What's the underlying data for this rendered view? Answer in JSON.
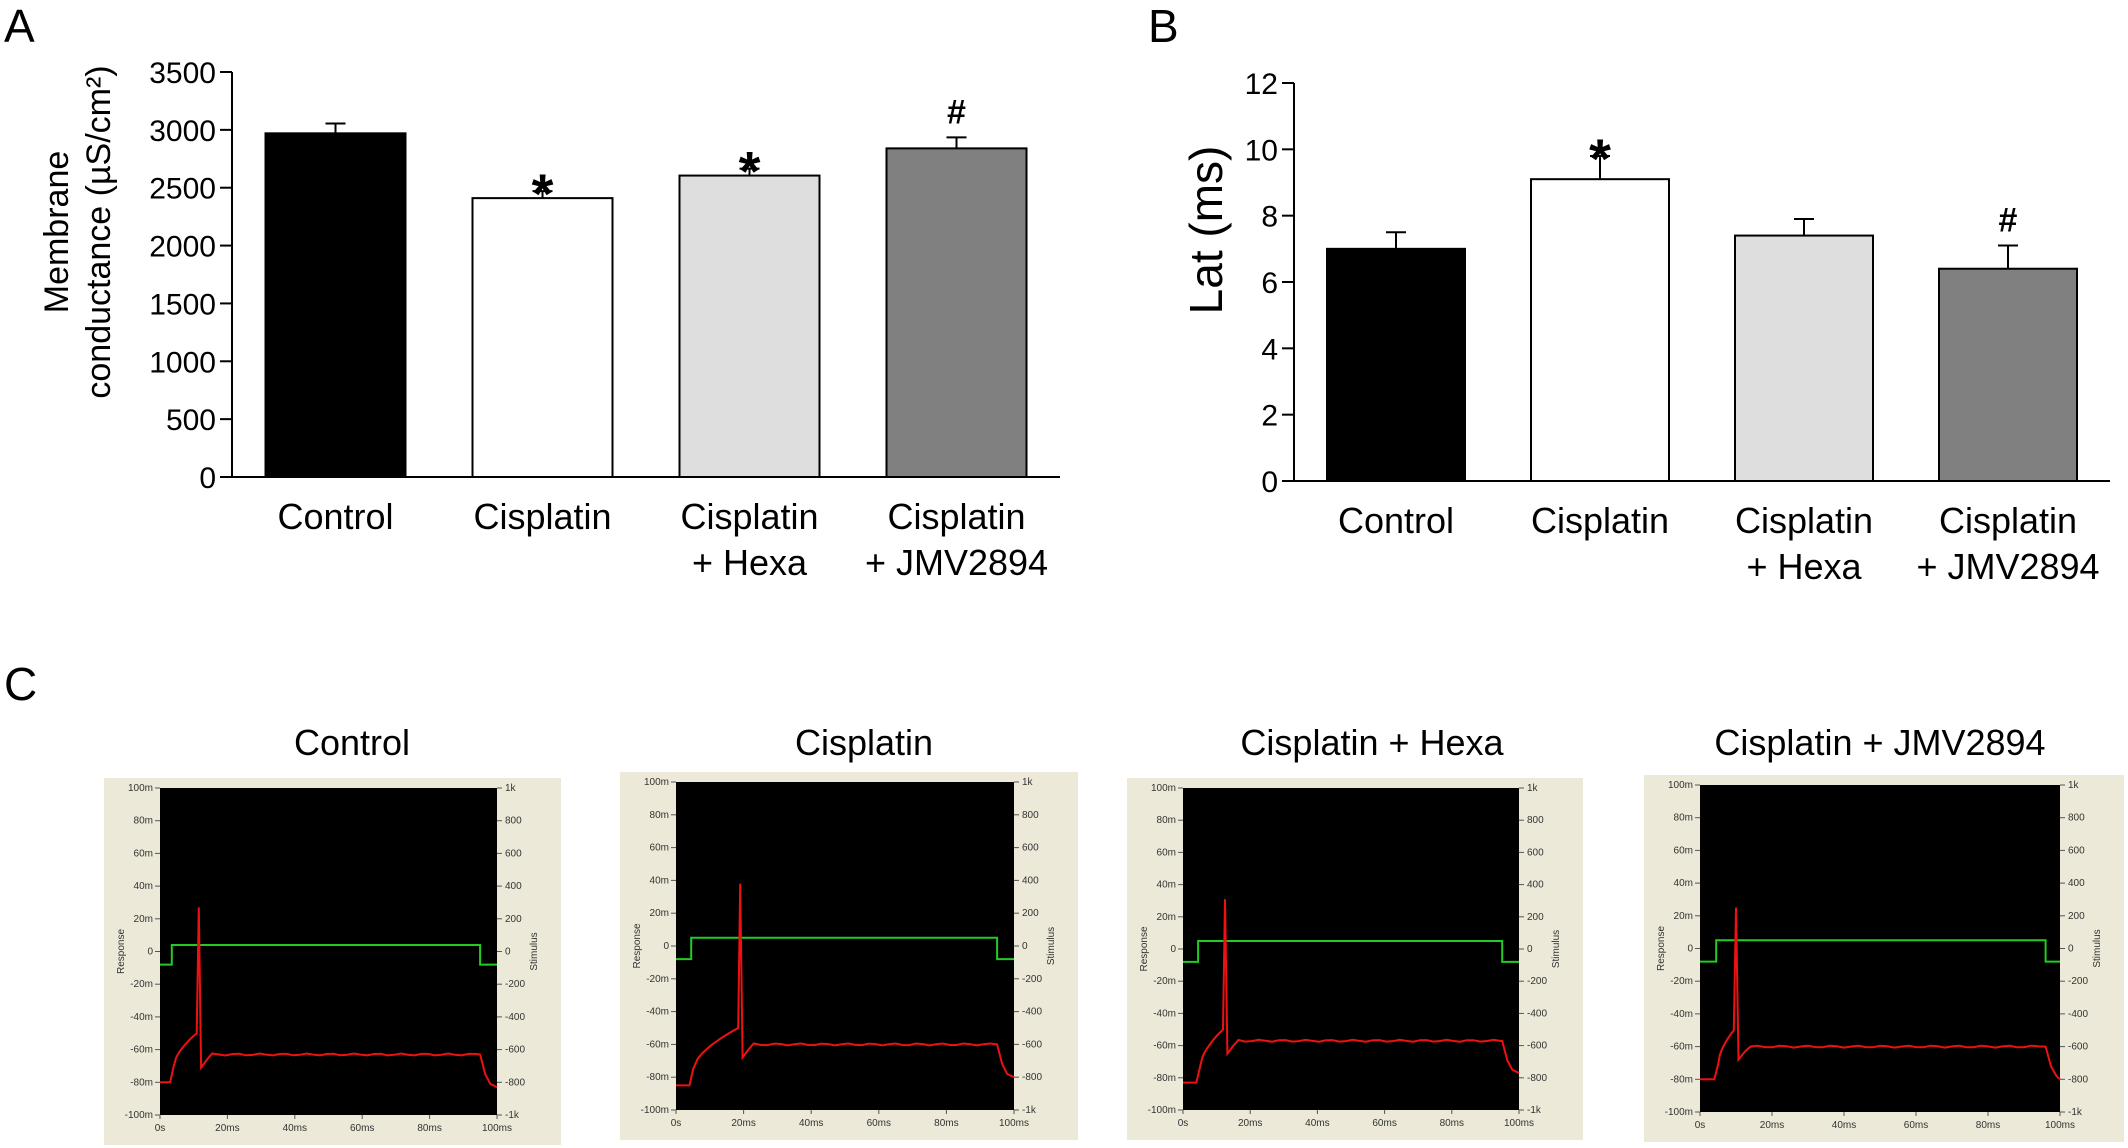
{
  "panels": {
    "a_letter": "A",
    "b_letter": "B",
    "c_letter": "C"
  },
  "chart_data": [
    {
      "id": "A",
      "type": "bar",
      "categories": [
        "Control",
        "Cisplatin",
        "Cisplatin\n+ Hexa",
        "Cisplatin\n+ JMV2894"
      ],
      "values": [
        2970,
        2410,
        2605,
        2840
      ],
      "errors": [
        85,
        60,
        60,
        95
      ],
      "annotations": [
        "",
        "*",
        "*",
        "#"
      ],
      "ylabel_line1": "Membrane",
      "ylabel_line2": "conductance (µS/cm²)",
      "ylim": [
        0,
        3500
      ],
      "yticks": [
        0,
        500,
        1000,
        1500,
        2000,
        2500,
        3000,
        3500
      ],
      "bar_colors": [
        "#000000",
        "#ffffff",
        "#dedede",
        "#808080"
      ]
    },
    {
      "id": "B",
      "type": "bar",
      "categories": [
        "Control",
        "Cisplatin",
        "Cisplatin\n+ Hexa",
        "Cisplatin\n+ JMV2894"
      ],
      "values": [
        7.0,
        9.1,
        7.4,
        6.4
      ],
      "errors": [
        0.5,
        0.7,
        0.5,
        0.7
      ],
      "annotations": [
        "",
        "*",
        "",
        "#"
      ],
      "ylabel": "Lat (ms)",
      "ylim": [
        0,
        12
      ],
      "yticks": [
        0,
        2,
        4,
        6,
        8,
        10,
        12
      ],
      "bar_colors": [
        "#000000",
        "#ffffff",
        "#dedede",
        "#808080"
      ]
    }
  ],
  "traces": {
    "titles": [
      "Control",
      "Cisplatin",
      "Cisplatin + Hexa",
      "Cisplatin + JMV2894"
    ],
    "left_ticks": [
      "100m",
      "80m",
      "60m",
      "40m",
      "20m",
      "0",
      "-20m",
      "-40m",
      "-60m",
      "-80m",
      "-100m"
    ],
    "right_ticks": [
      "1k",
      "800",
      "600",
      "400",
      "200",
      "0",
      "-200",
      "-400",
      "-600",
      "-800",
      "-1k"
    ],
    "x_ticks": [
      "0s",
      "20ms",
      "40ms",
      "60ms",
      "80ms",
      "100ms"
    ],
    "left_axis_label": "Response",
    "right_axis_label": "Stimulus",
    "colors": {
      "stimulus": "#22cc22",
      "response": "#ee1111",
      "frame": "#ece9d8",
      "plot_bg": "#000000"
    },
    "stim_on_ms": [
      3.5,
      4.5,
      4.5,
      4.5
    ],
    "stim_off_ms": [
      95,
      95,
      95,
      96
    ],
    "stim_level_mV": [
      4,
      5,
      5,
      5
    ],
    "stim_base_mV": -8,
    "spike_ms": [
      11.5,
      19,
      12.5,
      10
    ],
    "spike_peak_mV": [
      27,
      38,
      31,
      25
    ],
    "plateau_mV": [
      -63,
      -60,
      -57,
      -60
    ],
    "start_mV": [
      -80,
      -85,
      -83,
      -80
    ]
  }
}
